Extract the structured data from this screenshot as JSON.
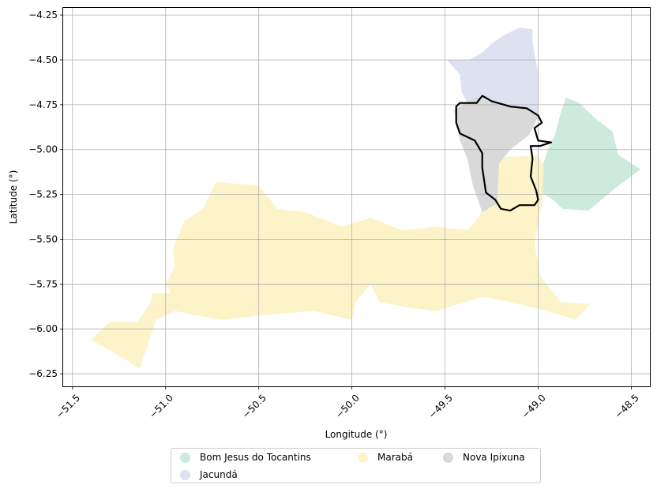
{
  "chart_data": {
    "type": "map",
    "xlabel": "Longitude (°)",
    "ylabel": "Latitude (°)",
    "xlim": [
      -51.55,
      -48.4
    ],
    "ylim": [
      -6.32,
      -4.21
    ],
    "xticks": [
      "−51.5",
      "−51.0",
      "−50.5",
      "−50.0",
      "−49.5",
      "−49.0",
      "−48.5"
    ],
    "xtick_values": [
      -51.5,
      -51.0,
      -50.5,
      -50.0,
      -49.5,
      -49.0,
      -48.5
    ],
    "yticks": [
      "−4.25",
      "−4.50",
      "−4.75",
      "−5.00",
      "−5.25",
      "−5.50",
      "−5.75",
      "−6.00",
      "−6.25"
    ],
    "ytick_values": [
      -4.25,
      -4.5,
      -4.75,
      -5.0,
      -5.25,
      -5.5,
      -5.75,
      -6.0,
      -6.25
    ],
    "grid": true,
    "legend_position": "bottom-center",
    "regions": [
      {
        "name": "Bom Jesus do Tocantins",
        "color": "#ccebdc",
        "polygon": [
          [
            -48.85,
            -4.71
          ],
          [
            -48.78,
            -4.74
          ],
          [
            -48.7,
            -4.82
          ],
          [
            -48.6,
            -4.9
          ],
          [
            -48.57,
            -5.03
          ],
          [
            -48.45,
            -5.11
          ],
          [
            -48.58,
            -5.21
          ],
          [
            -48.73,
            -5.34
          ],
          [
            -48.87,
            -5.33
          ],
          [
            -48.92,
            -5.28
          ],
          [
            -48.98,
            -5.24
          ],
          [
            -48.98,
            -5.1
          ],
          [
            -48.94,
            -4.98
          ],
          [
            -48.91,
            -4.92
          ],
          [
            -48.88,
            -4.8
          ],
          [
            -48.86,
            -4.74
          ]
        ]
      },
      {
        "name": "Jacundá",
        "color": "#dde1f0",
        "polygon": [
          [
            -49.49,
            -4.5
          ],
          [
            -49.42,
            -4.58
          ],
          [
            -49.41,
            -4.68
          ],
          [
            -49.38,
            -4.74
          ],
          [
            -49.31,
            -4.72
          ],
          [
            -49.25,
            -4.76
          ],
          [
            -49.15,
            -4.78
          ],
          [
            -49.08,
            -4.78
          ],
          [
            -49.0,
            -4.8
          ],
          [
            -49.0,
            -4.72
          ],
          [
            -49.0,
            -4.58
          ],
          [
            -49.03,
            -4.4
          ],
          [
            -49.03,
            -4.33
          ],
          [
            -49.1,
            -4.32
          ],
          [
            -49.18,
            -4.36
          ],
          [
            -49.25,
            -4.41
          ],
          [
            -49.3,
            -4.46
          ],
          [
            -49.37,
            -4.5
          ]
        ]
      },
      {
        "name": "Marabá",
        "color": "#fdf3c9",
        "polygon": [
          [
            -50.73,
            -5.18
          ],
          [
            -50.5,
            -5.2
          ],
          [
            -50.4,
            -5.33
          ],
          [
            -50.25,
            -5.35
          ],
          [
            -50.05,
            -5.43
          ],
          [
            -49.9,
            -5.38
          ],
          [
            -49.73,
            -5.45
          ],
          [
            -49.55,
            -5.43
          ],
          [
            -49.38,
            -5.45
          ],
          [
            -49.32,
            -5.38
          ],
          [
            -49.26,
            -5.22
          ],
          [
            -49.27,
            -5.1
          ],
          [
            -49.3,
            -5.05
          ],
          [
            -49.0,
            -5.03
          ],
          [
            -48.97,
            -5.1
          ],
          [
            -48.98,
            -5.3
          ],
          [
            -49.02,
            -5.52
          ],
          [
            -48.99,
            -5.7
          ],
          [
            -48.88,
            -5.85
          ],
          [
            -48.72,
            -5.86
          ],
          [
            -48.8,
            -5.95
          ],
          [
            -48.95,
            -5.9
          ],
          [
            -49.15,
            -5.85
          ],
          [
            -49.3,
            -5.82
          ],
          [
            -49.55,
            -5.9
          ],
          [
            -49.7,
            -5.88
          ],
          [
            -49.85,
            -5.85
          ],
          [
            -49.9,
            -5.75
          ],
          [
            -49.98,
            -5.85
          ],
          [
            -50.0,
            -5.95
          ],
          [
            -50.2,
            -5.9
          ],
          [
            -50.45,
            -5.92
          ],
          [
            -50.7,
            -5.95
          ],
          [
            -50.95,
            -5.9
          ],
          [
            -51.05,
            -5.95
          ],
          [
            -51.1,
            -6.1
          ],
          [
            -51.14,
            -6.22
          ],
          [
            -51.25,
            -6.15
          ],
          [
            -51.4,
            -6.06
          ],
          [
            -51.3,
            -5.96
          ],
          [
            -51.15,
            -5.96
          ],
          [
            -51.08,
            -5.85
          ],
          [
            -51.07,
            -5.8
          ],
          [
            -50.97,
            -5.8
          ],
          [
            -51.0,
            -5.75
          ],
          [
            -50.95,
            -5.65
          ],
          [
            -50.96,
            -5.55
          ],
          [
            -50.9,
            -5.4
          ],
          [
            -50.8,
            -5.33
          ]
        ]
      },
      {
        "name": "Nova Ipixuna",
        "color": "#d9d9d9",
        "polygon": [
          [
            -49.33,
            -4.71
          ],
          [
            -49.25,
            -4.74
          ],
          [
            -49.15,
            -4.76
          ],
          [
            -49.03,
            -4.78
          ],
          [
            -49.0,
            -4.82
          ],
          [
            -49.05,
            -4.92
          ],
          [
            -49.15,
            -5.0
          ],
          [
            -49.21,
            -5.08
          ],
          [
            -49.22,
            -5.3
          ],
          [
            -49.3,
            -5.35
          ],
          [
            -49.35,
            -5.2
          ],
          [
            -49.38,
            -5.05
          ],
          [
            -49.42,
            -4.95
          ],
          [
            -49.45,
            -4.78
          ],
          [
            -49.41,
            -4.75
          ]
        ]
      }
    ],
    "highlight_outline": {
      "color": "#000000",
      "polygon": [
        [
          -49.44,
          -4.76
        ],
        [
          -49.42,
          -4.74
        ],
        [
          -49.33,
          -4.74
        ],
        [
          -49.3,
          -4.7
        ],
        [
          -49.25,
          -4.73
        ],
        [
          -49.15,
          -4.76
        ],
        [
          -49.06,
          -4.77
        ],
        [
          -49.0,
          -4.81
        ],
        [
          -48.98,
          -4.85
        ],
        [
          -49.02,
          -4.88
        ],
        [
          -49.0,
          -4.95
        ],
        [
          -48.93,
          -4.96
        ],
        [
          -48.99,
          -4.98
        ],
        [
          -49.04,
          -4.98
        ],
        [
          -49.03,
          -5.05
        ],
        [
          -49.04,
          -5.15
        ],
        [
          -49.01,
          -5.23
        ],
        [
          -49.0,
          -5.28
        ],
        [
          -49.02,
          -5.31
        ],
        [
          -49.1,
          -5.31
        ],
        [
          -49.15,
          -5.34
        ],
        [
          -49.2,
          -5.33
        ],
        [
          -49.23,
          -5.28
        ],
        [
          -49.28,
          -5.24
        ],
        [
          -49.3,
          -5.1
        ],
        [
          -49.3,
          -5.02
        ],
        [
          -49.34,
          -4.95
        ],
        [
          -49.42,
          -4.91
        ],
        [
          -49.44,
          -4.85
        ]
      ]
    }
  },
  "legend": [
    {
      "label": "Bom Jesus do Tocantins",
      "color": "#ccebdc"
    },
    {
      "label": "Jacundá",
      "color": "#dde1f0"
    },
    {
      "label": "Marabá",
      "color": "#fdf3c9"
    },
    {
      "label": "Nova Ipixuna",
      "color": "#d9d9d9"
    }
  ]
}
